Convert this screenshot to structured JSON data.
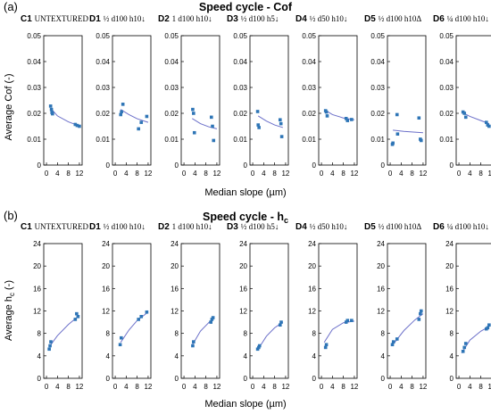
{
  "figure": {
    "panel_a_label": "(a)",
    "panel_a_title": "Speed cycle - Cof",
    "panel_b_label": "(b)",
    "panel_b_title_main": "Speed cycle - h",
    "panel_b_title_sub": "c",
    "xlabel_a": "Median slope (µm)",
    "xlabel_b": "Median slope (µm)",
    "ylabel_a": "Average Cof (-)",
    "ylabel_b_main": "Average h",
    "ylabel_b_sub": "c",
    "ylabel_b_tail": " (-)"
  },
  "colors": {
    "marker": "#2e75b6",
    "fit": "#6b6fc9",
    "axis": "#000000"
  },
  "chart_data": [
    {
      "type": "scatter",
      "panel": "a",
      "ylim": [
        0,
        0.05
      ],
      "yticks": [
        "0",
        "0.01",
        "0.02",
        "0.03",
        "0.04",
        "0.05"
      ],
      "xlim": [
        -1,
        13
      ],
      "xticks": [
        "0",
        "4",
        "8",
        "12"
      ],
      "subplots": [
        {
          "code": "C1",
          "condition": "UNTEXTURED",
          "points": [
            [
              1.5,
              0.0228
            ],
            [
              1.8,
              0.0215
            ],
            [
              2.0,
              0.0203
            ],
            [
              2.2,
              0.0198
            ],
            [
              10.5,
              0.0157
            ],
            [
              11.2,
              0.0153
            ],
            [
              12.0,
              0.015
            ]
          ],
          "fit": [
            [
              1.5,
              0.022
            ],
            [
              4,
              0.019
            ],
            [
              8,
              0.0167
            ],
            [
              12,
              0.0151
            ]
          ]
        },
        {
          "code": "D1",
          "condition": "½ d100 h10↓",
          "points": [
            [
              2.0,
              0.0195
            ],
            [
              2.3,
              0.0206
            ],
            [
              2.8,
              0.0235
            ],
            [
              8.5,
              0.014
            ],
            [
              9.5,
              0.0165
            ],
            [
              11.5,
              0.0188
            ]
          ],
          "fit": [
            [
              2,
              0.0215
            ],
            [
              5,
              0.0195
            ],
            [
              8,
              0.0179
            ],
            [
              12,
              0.0165
            ]
          ]
        },
        {
          "code": "D2",
          "condition": "1 d100 h10↓",
          "points": [
            [
              3.2,
              0.0215
            ],
            [
              3.5,
              0.02
            ],
            [
              3.8,
              0.0125
            ],
            [
              10.0,
              0.0185
            ],
            [
              10.4,
              0.015
            ],
            [
              10.8,
              0.0095
            ]
          ],
          "fit": [
            [
              3,
              0.018
            ],
            [
              6,
              0.016
            ],
            [
              9,
              0.0148
            ],
            [
              12,
              0.014
            ]
          ]
        },
        {
          "code": "D3",
          "condition": "½ d100 h5↓",
          "points": [
            [
              1.8,
              0.0207
            ],
            [
              2.0,
              0.0155
            ],
            [
              2.3,
              0.0145
            ],
            [
              10.0,
              0.0175
            ],
            [
              10.3,
              0.016
            ],
            [
              10.6,
              0.011
            ]
          ],
          "fit": [
            [
              2,
              0.019
            ],
            [
              5,
              0.017
            ],
            [
              8,
              0.0155
            ],
            [
              11,
              0.0145
            ]
          ]
        },
        {
          "code": "D4",
          "condition": "½ d50 h10↓",
          "points": [
            [
              1.5,
              0.021
            ],
            [
              1.8,
              0.0205
            ],
            [
              2.1,
              0.019
            ],
            [
              9.0,
              0.018
            ],
            [
              9.5,
              0.0172
            ],
            [
              11.0,
              0.0176
            ]
          ],
          "fit": [
            [
              1,
              0.0215
            ],
            [
              4,
              0.0195
            ],
            [
              8,
              0.0182
            ],
            [
              12,
              0.0175
            ]
          ]
        },
        {
          "code": "D5",
          "condition": "½ d100 h10Δ",
          "points": [
            [
              0.8,
              0.008
            ],
            [
              1.0,
              0.0085
            ],
            [
              2.5,
              0.0195
            ],
            [
              2.7,
              0.012
            ],
            [
              10.5,
              0.0182
            ],
            [
              11.0,
              0.01
            ],
            [
              11.3,
              0.0095
            ]
          ],
          "fit": [
            [
              1,
              0.0135
            ],
            [
              5,
              0.013
            ],
            [
              9,
              0.0127
            ],
            [
              12,
              0.0125
            ]
          ]
        },
        {
          "code": "D6",
          "condition": "¼ d100 h10↓",
          "points": [
            [
              1.5,
              0.0205
            ],
            [
              2.0,
              0.02
            ],
            [
              2.5,
              0.0185
            ],
            [
              10.0,
              0.0165
            ],
            [
              10.5,
              0.0155
            ],
            [
              11.0,
              0.015
            ]
          ],
          "fit": [
            [
              1.5,
              0.0202
            ],
            [
              4,
              0.0188
            ],
            [
              8,
              0.0172
            ],
            [
              11,
              0.016
            ]
          ]
        }
      ]
    },
    {
      "type": "scatter",
      "panel": "b",
      "ylim": [
        0,
        24
      ],
      "yticks": [
        "0",
        "4",
        "8",
        "12",
        "16",
        "20",
        "24"
      ],
      "xlim": [
        -1,
        13
      ],
      "xticks": [
        "0",
        "4",
        "8",
        "12"
      ],
      "subplots": [
        {
          "code": "C1",
          "condition": "UNTEXTURED",
          "points": [
            [
              1.0,
              5.2
            ],
            [
              1.3,
              5.8
            ],
            [
              1.6,
              6.5
            ],
            [
              10.5,
              10.5
            ],
            [
              11.0,
              11.5
            ],
            [
              11.5,
              11.0
            ]
          ],
          "fit": [
            [
              1,
              5.6
            ],
            [
              4,
              7.6
            ],
            [
              8,
              9.6
            ],
            [
              12,
              11.2
            ]
          ]
        },
        {
          "code": "D1",
          "condition": "½ d100 h10↓",
          "points": [
            [
              1.8,
              6.0
            ],
            [
              2.2,
              7.2
            ],
            [
              8.5,
              10.5
            ],
            [
              9.5,
              11.0
            ],
            [
              11.5,
              11.8
            ]
          ],
          "fit": [
            [
              2,
              6.4
            ],
            [
              5,
              8.6
            ],
            [
              8,
              10.3
            ],
            [
              12,
              11.8
            ]
          ]
        },
        {
          "code": "D2",
          "condition": "1 d100 h10↓",
          "points": [
            [
              3.2,
              5.8
            ],
            [
              3.5,
              6.5
            ],
            [
              9.8,
              10.0
            ],
            [
              10.2,
              10.5
            ],
            [
              10.6,
              10.8
            ]
          ],
          "fit": [
            [
              3,
              5.9
            ],
            [
              6,
              8.4
            ],
            [
              9,
              9.9
            ],
            [
              11,
              10.8
            ]
          ]
        },
        {
          "code": "D3",
          "condition": "½ d100 h5↓",
          "points": [
            [
              1.8,
              5.2
            ],
            [
              2.2,
              5.5
            ],
            [
              2.5,
              5.8
            ],
            [
              10.0,
              9.5
            ],
            [
              10.4,
              10.0
            ]
          ],
          "fit": [
            [
              2,
              5.2
            ],
            [
              5,
              7.5
            ],
            [
              8,
              9.0
            ],
            [
              11,
              10.0
            ]
          ]
        },
        {
          "code": "D4",
          "condition": "½ d50 h10↓",
          "points": [
            [
              1.5,
              5.5
            ],
            [
              1.8,
              6.0
            ],
            [
              9.0,
              10.0
            ],
            [
              9.5,
              10.3
            ],
            [
              11.0,
              10.3
            ]
          ],
          "fit": [
            [
              1,
              6.4
            ],
            [
              4,
              8.7
            ],
            [
              8,
              9.9
            ],
            [
              12,
              10.2
            ]
          ]
        },
        {
          "code": "D5",
          "condition": "½ d100 h10Δ",
          "points": [
            [
              0.8,
              6.0
            ],
            [
              1.2,
              6.5
            ],
            [
              2.5,
              7.0
            ],
            [
              10.5,
              10.5
            ],
            [
              11.0,
              11.5
            ],
            [
              11.3,
              12.0
            ]
          ],
          "fit": [
            [
              1,
              6.0
            ],
            [
              5,
              8.5
            ],
            [
              9,
              10.4
            ],
            [
              12,
              11.5
            ]
          ]
        },
        {
          "code": "D6",
          "condition": "¼ d100 h10↓",
          "points": [
            [
              1.5,
              4.8
            ],
            [
              2.0,
              5.5
            ],
            [
              2.5,
              6.2
            ],
            [
              10.0,
              8.8
            ],
            [
              10.5,
              9.0
            ],
            [
              11.0,
              9.5
            ]
          ],
          "fit": [
            [
              1,
              4.5
            ],
            [
              4,
              6.8
            ],
            [
              8,
              8.4
            ],
            [
              11,
              9.2
            ]
          ]
        }
      ]
    }
  ]
}
